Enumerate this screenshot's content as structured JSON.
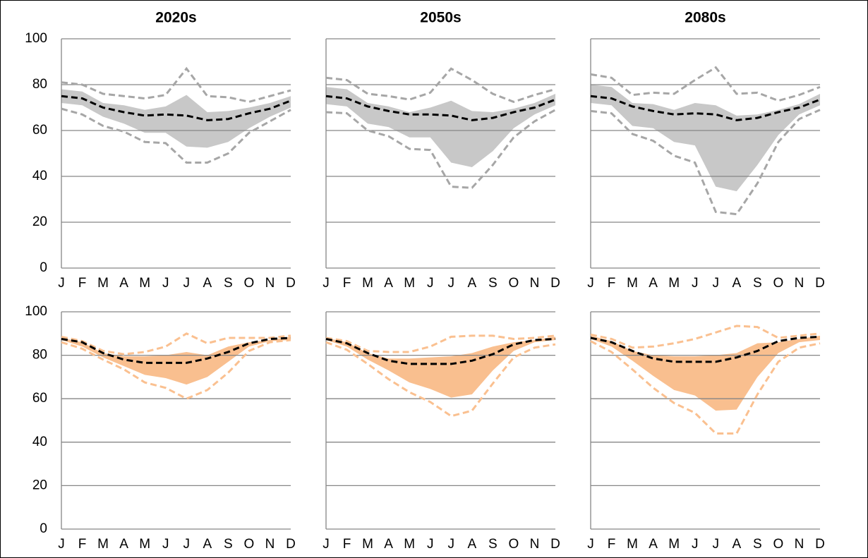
{
  "chart_data": [
    {
      "type": "line",
      "title": "2020s",
      "categories": [
        "J",
        "F",
        "M",
        "A",
        "M",
        "J",
        "J",
        "A",
        "S",
        "O",
        "N",
        "D"
      ],
      "ylim": [
        0,
        100
      ],
      "yticks": [
        0,
        20,
        40,
        60,
        80,
        100
      ],
      "show_ytick_labels": true,
      "grid": true,
      "band": {
        "color": "#c8c8c8",
        "upper": [
          78,
          77,
          72,
          71,
          69,
          70.5,
          75.5,
          68,
          68.5,
          70,
          72,
          75
        ],
        "lower": [
          72,
          71,
          66,
          63,
          59,
          59,
          53,
          52.5,
          55,
          61,
          66,
          70
        ]
      },
      "series": [
        {
          "color": "#a6a6a6",
          "dash": true,
          "values": [
            81,
            80,
            76,
            75,
            74,
            75.5,
            87,
            75,
            74.5,
            72.5,
            75,
            77.5
          ]
        },
        {
          "color": "#a6a6a6",
          "dash": true,
          "values": [
            69.5,
            67,
            62,
            59.5,
            55,
            54.5,
            46,
            46,
            50,
            59,
            64,
            69
          ]
        },
        {
          "color": "#000000",
          "dash": true,
          "values": [
            75,
            74,
            70,
            68,
            66.5,
            67,
            66.5,
            64.5,
            65,
            67.5,
            69.5,
            73
          ]
        }
      ]
    },
    {
      "type": "line",
      "title": "2050s",
      "categories": [
        "J",
        "F",
        "M",
        "A",
        "M",
        "J",
        "J",
        "A",
        "S",
        "O",
        "N",
        "D"
      ],
      "ylim": [
        0,
        100
      ],
      "yticks": [
        0,
        20,
        40,
        60,
        80,
        100
      ],
      "show_ytick_labels": false,
      "grid": true,
      "band": {
        "color": "#c8c8c8",
        "upper": [
          79,
          78,
          72,
          70.5,
          68,
          70,
          73,
          68.5,
          68,
          69.5,
          72,
          76
        ],
        "lower": [
          71.5,
          70.5,
          63,
          61.5,
          57,
          57,
          46,
          44,
          51,
          61,
          67,
          71
        ]
      },
      "series": [
        {
          "color": "#a6a6a6",
          "dash": true,
          "values": [
            83,
            82,
            76,
            75,
            73.5,
            76.5,
            87,
            82,
            76,
            72.5,
            75.5,
            78
          ]
        },
        {
          "color": "#a6a6a6",
          "dash": true,
          "values": [
            68,
            67.5,
            60,
            57.5,
            52,
            51.5,
            35.5,
            35,
            45,
            57,
            64,
            69
          ]
        },
        {
          "color": "#000000",
          "dash": true,
          "values": [
            75,
            74,
            70.5,
            68.5,
            67,
            67,
            66.5,
            64.5,
            65.5,
            68,
            70,
            73.5
          ]
        }
      ]
    },
    {
      "type": "line",
      "title": "2080s",
      "categories": [
        "J",
        "F",
        "M",
        "A",
        "M",
        "J",
        "J",
        "A",
        "S",
        "O",
        "N",
        "D"
      ],
      "ylim": [
        0,
        100
      ],
      "yticks": [
        0,
        20,
        40,
        60,
        80,
        100
      ],
      "show_ytick_labels": false,
      "grid": true,
      "band": {
        "color": "#c8c8c8",
        "upper": [
          80,
          79,
          72,
          71.5,
          69,
          72,
          71,
          66.5,
          67,
          69,
          71.5,
          76
        ],
        "lower": [
          72,
          71,
          62,
          61,
          55,
          53.5,
          35.5,
          33.5,
          45,
          58,
          67,
          71
        ]
      },
      "series": [
        {
          "color": "#a6a6a6",
          "dash": true,
          "values": [
            84.5,
            83,
            75.5,
            76.5,
            76,
            82,
            87.5,
            76,
            76.5,
            73,
            75.5,
            79
          ]
        },
        {
          "color": "#a6a6a6",
          "dash": true,
          "values": [
            68.5,
            67.5,
            58.5,
            55.5,
            49,
            46,
            24.5,
            23.5,
            37,
            55,
            65,
            69
          ]
        },
        {
          "color": "#000000",
          "dash": true,
          "values": [
            75,
            74,
            70.5,
            68.5,
            67,
            67.5,
            67,
            64.5,
            65.5,
            68,
            70,
            73.5
          ]
        }
      ]
    },
    {
      "type": "line",
      "categories": [
        "J",
        "F",
        "M",
        "A",
        "M",
        "J",
        "J",
        "A",
        "S",
        "O",
        "N",
        "D"
      ],
      "ylim": [
        0,
        100
      ],
      "yticks": [
        0,
        20,
        40,
        60,
        80,
        100
      ],
      "show_ytick_labels": true,
      "grid": true,
      "band": {
        "color": "#f9bf8f",
        "upper": [
          88,
          86,
          81,
          79.5,
          79.5,
          80,
          81.5,
          80,
          84,
          86,
          87,
          88.5
        ],
        "lower": [
          87,
          84,
          79,
          75,
          71,
          69.5,
          66.5,
          70,
          77,
          84,
          86.5,
          87
        ]
      },
      "series": [
        {
          "color": "#fac090",
          "dash": true,
          "values": [
            88.5,
            86.5,
            82,
            80.5,
            81.5,
            84,
            90,
            85.5,
            88,
            88,
            88,
            89
          ]
        },
        {
          "color": "#fac090",
          "dash": true,
          "values": [
            86,
            83,
            78,
            73.5,
            67.5,
            65,
            60,
            64,
            72,
            82,
            86,
            87
          ]
        },
        {
          "color": "#000000",
          "dash": true,
          "values": [
            87.5,
            86,
            81,
            78,
            76.5,
            76.5,
            76.5,
            78.5,
            81.5,
            85.5,
            87.5,
            88
          ]
        }
      ]
    },
    {
      "type": "line",
      "categories": [
        "J",
        "F",
        "M",
        "A",
        "M",
        "J",
        "J",
        "A",
        "S",
        "O",
        "N",
        "D"
      ],
      "ylim": [
        0,
        100
      ],
      "yticks": [
        0,
        20,
        40,
        60,
        80,
        100
      ],
      "show_ytick_labels": false,
      "grid": true,
      "band": {
        "color": "#f9bf8f",
        "upper": [
          88,
          86,
          81,
          78.5,
          78.5,
          79,
          79.5,
          81,
          84,
          86,
          87,
          88.5
        ],
        "lower": [
          87,
          84,
          78,
          73,
          67.5,
          64.5,
          60.5,
          62,
          73,
          82,
          86,
          87
        ]
      },
      "series": [
        {
          "color": "#fac090",
          "dash": true,
          "values": [
            88,
            86.5,
            82,
            81.5,
            81.5,
            84,
            88.5,
            89,
            89,
            87.5,
            88,
            89
          ]
        },
        {
          "color": "#fac090",
          "dash": true,
          "values": [
            86,
            82.5,
            76,
            69,
            63,
            58.5,
            52,
            54.5,
            67,
            79,
            83.5,
            85
          ]
        },
        {
          "color": "#000000",
          "dash": true,
          "values": [
            87.5,
            85.5,
            81,
            77.5,
            76,
            76,
            76,
            77.5,
            80.5,
            85,
            87,
            87.5
          ]
        }
      ]
    },
    {
      "type": "line",
      "categories": [
        "J",
        "F",
        "M",
        "A",
        "M",
        "J",
        "J",
        "A",
        "S",
        "O",
        "N",
        "D"
      ],
      "ylim": [
        0,
        100
      ],
      "yticks": [
        0,
        20,
        40,
        60,
        80,
        100
      ],
      "show_ytick_labels": false,
      "grid": true,
      "band": {
        "color": "#f9bf8f",
        "upper": [
          89,
          86.5,
          82,
          80,
          79.5,
          79.5,
          80,
          81,
          85.5,
          86,
          87.5,
          89
        ],
        "lower": [
          87.5,
          84,
          77.5,
          70.5,
          64,
          61.5,
          54.5,
          55,
          70,
          81,
          86,
          87
        ]
      },
      "series": [
        {
          "color": "#fac090",
          "dash": true,
          "values": [
            89.5,
            87.5,
            83.5,
            84,
            85.5,
            87.5,
            90.5,
            93.5,
            93,
            88,
            89,
            90
          ]
        },
        {
          "color": "#fac090",
          "dash": true,
          "values": [
            86.5,
            81.5,
            73.5,
            65,
            58,
            53.5,
            44,
            44,
            62,
            77,
            83.5,
            85.5
          ]
        },
        {
          "color": "#000000",
          "dash": true,
          "values": [
            88,
            86,
            82,
            78.5,
            77,
            77,
            77,
            79,
            82,
            86.5,
            88,
            88.5
          ]
        }
      ]
    }
  ]
}
